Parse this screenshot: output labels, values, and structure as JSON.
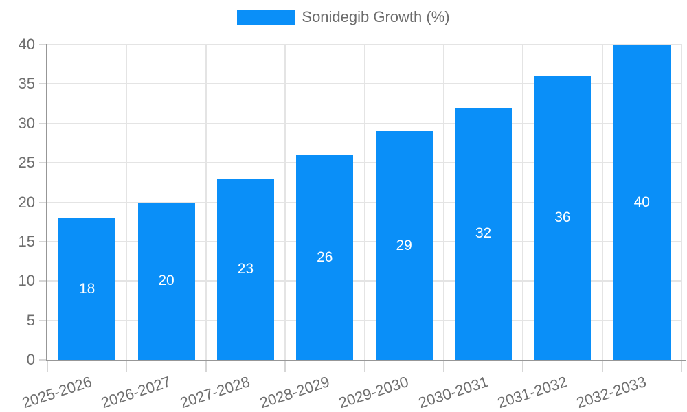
{
  "legend": {
    "label": "Sonidegib Growth (%)"
  },
  "colors": {
    "bar": "#0a8ff8",
    "legend_text": "#6b6b6b",
    "axis_text": "#6e6e6e",
    "grid": "#e4e4e4",
    "tick": "#d6d6d6",
    "axis_line": "#979797",
    "value_label": "#ffffff",
    "background": "#ffffff"
  },
  "chart_data": {
    "type": "bar",
    "title": "",
    "legend_label": "Sonidegib Growth (%)",
    "legend_position": "top",
    "categories": [
      "2025-2026",
      "2026-2027",
      "2027-2028",
      "2028-2029",
      "2029-2030",
      "2030-2031",
      "2031-2032",
      "2032-2033"
    ],
    "series": [
      {
        "name": "Sonidegib Growth (%)",
        "values": [
          18,
          20,
          23,
          26,
          29,
          32,
          36,
          40
        ]
      }
    ],
    "xlabel": "",
    "ylabel": "",
    "ylim": [
      0,
      40
    ],
    "yticks": [
      0,
      5,
      10,
      15,
      20,
      25,
      30,
      35,
      40
    ],
    "grid": true,
    "value_labels_position": "inside-center",
    "x_label_rotation_deg": -18
  }
}
